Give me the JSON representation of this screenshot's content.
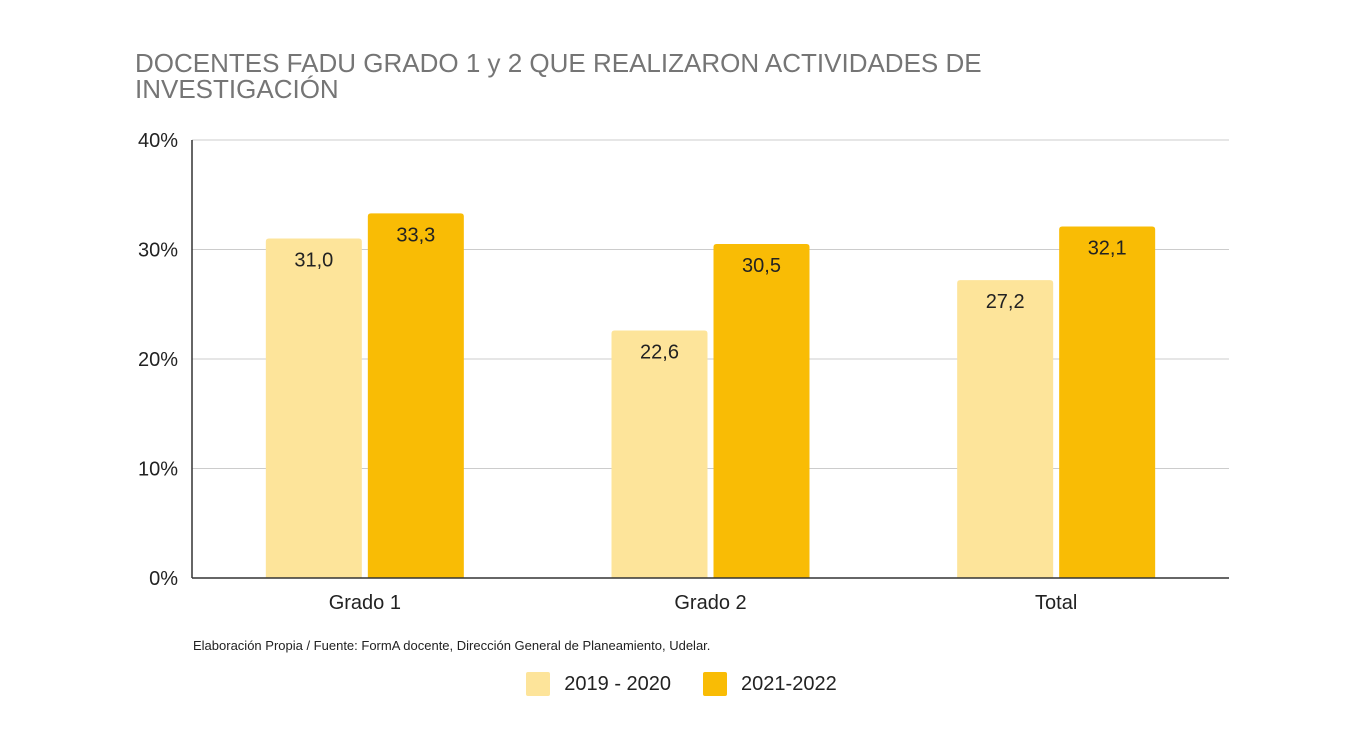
{
  "colors": {
    "series_1": "#FDE49A",
    "series_2": "#F9BC05",
    "grid": "#CCCCCC",
    "axis": "#333333"
  },
  "chart_data": {
    "type": "bar",
    "title": "DOCENTES FADU GRADO 1 y 2 QUE REALIZARON ACTIVIDADES DE INVESTIGACIÓN",
    "categories": [
      "Grado 1",
      "Grado 2",
      "Total"
    ],
    "series": [
      {
        "name": "2019 - 2020",
        "values": [
          31.0,
          22.6,
          27.2
        ],
        "labels": [
          "31,0",
          "22,6",
          "27,2"
        ]
      },
      {
        "name": "2021-2022",
        "values": [
          33.3,
          30.5,
          32.1
        ],
        "labels": [
          "33,3",
          "30,5",
          "32,1"
        ]
      }
    ],
    "yticks": [
      "0%",
      "10%",
      "20%",
      "30%",
      "40%"
    ],
    "ylim": [
      0,
      40
    ],
    "grid": true,
    "legend_position": "bottom",
    "xlabel": "",
    "ylabel": ""
  },
  "source_note": "Elaboración Propia / Fuente: FormA docente, Dirección General de Planeamiento, Udelar."
}
